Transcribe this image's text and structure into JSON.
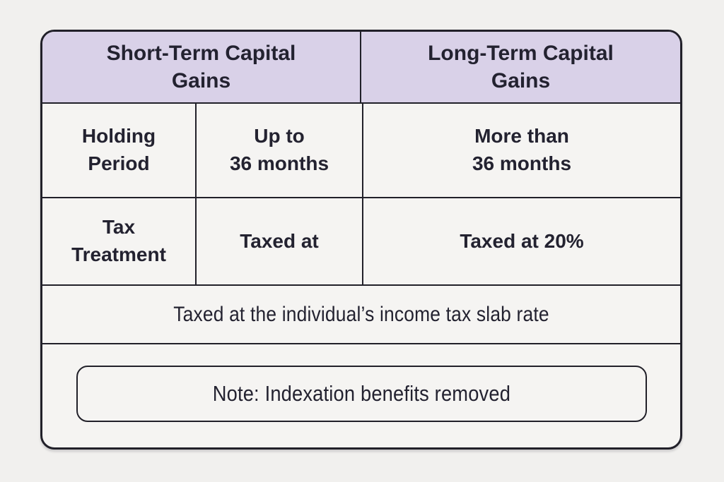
{
  "colors": {
    "page_bg": "#f1f0ee",
    "cell_bg": "#f5f4f2",
    "header_bg": "#d9d1e8",
    "border": "#212029",
    "text": "#232230"
  },
  "table": {
    "header": {
      "short_term": "Short-Term Capital\nGains",
      "long_term": "Long-Term Capital\nGains"
    },
    "rows": [
      {
        "label": "Holding\nPeriod",
        "short_term": "Up to\n36 months",
        "long_term": "More than\n36 months"
      },
      {
        "label": "Tax\nTreatment",
        "short_term": "Taxed at",
        "long_term": "Taxed at 20%"
      }
    ],
    "slab_row": "Taxed at the individual’s income tax slab rate",
    "note": "Note: Indexation benefits removed"
  }
}
